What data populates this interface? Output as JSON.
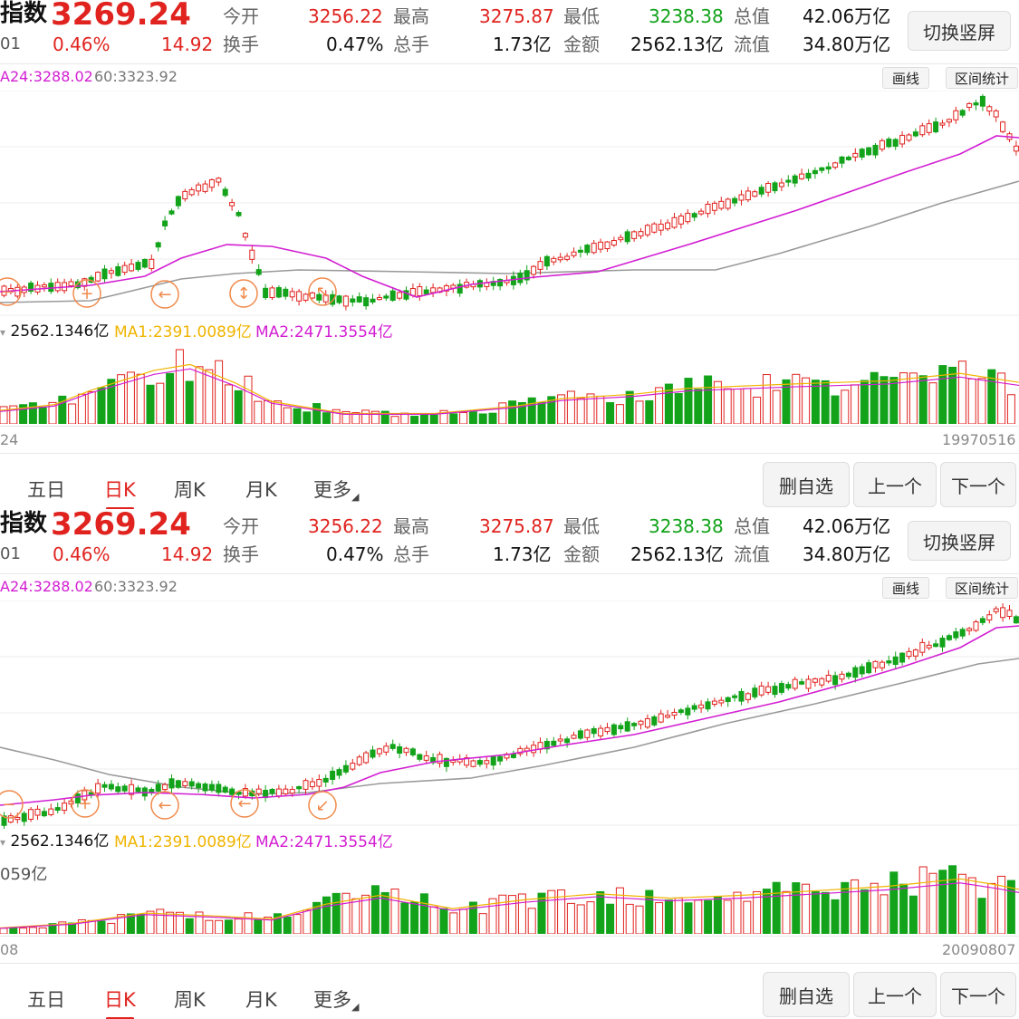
{
  "colors": {
    "up": "#e0231f",
    "down": "#12a31a",
    "ma_short": "#d21ed2",
    "ma_long": "#9a9a9a",
    "ma1": "#f0b400",
    "marker": "#f08a4b"
  },
  "quote": {
    "title_fragment": "指数",
    "code_fragment": "01",
    "price": "3269.24",
    "change_pct": "0.46%",
    "change": "14.92",
    "open_label": "今开",
    "open": "3256.22",
    "high_label": "最高",
    "high": "3275.87",
    "low_label": "最低",
    "low": "3238.38",
    "total_cap_label": "总值",
    "total_cap": "42.06万亿",
    "turnover_label": "换手",
    "turnover": "0.47%",
    "volume_label": "总手",
    "volume": "1.73亿",
    "amount_label": "金额",
    "amount": "2562.13亿",
    "float_cap_label": "流值",
    "float_cap": "34.80万亿",
    "switch_button": "切换竖屏"
  },
  "ma_legend": {
    "ma24": "A24:3288.02",
    "ma60": "60:3323.92"
  },
  "tools": {
    "draw": "画线",
    "interval_stats": "区间统计"
  },
  "volume_legend": {
    "amount": "2562.1346亿",
    "ma1": "MA1:2391.0089亿",
    "ma2": "MA2:2471.3554亿"
  },
  "tabs": [
    "五日",
    "日K",
    "周K",
    "月K",
    "更多"
  ],
  "actions": {
    "remove_watch": "删自选",
    "prev": "上一个",
    "next": "下一个"
  },
  "panel1": {
    "date_left": "24",
    "date_right": "19970516",
    "vol_axis": ""
  },
  "panel2": {
    "date_left": "08",
    "date_right": "20090807",
    "vol_axis": "059亿"
  }
}
